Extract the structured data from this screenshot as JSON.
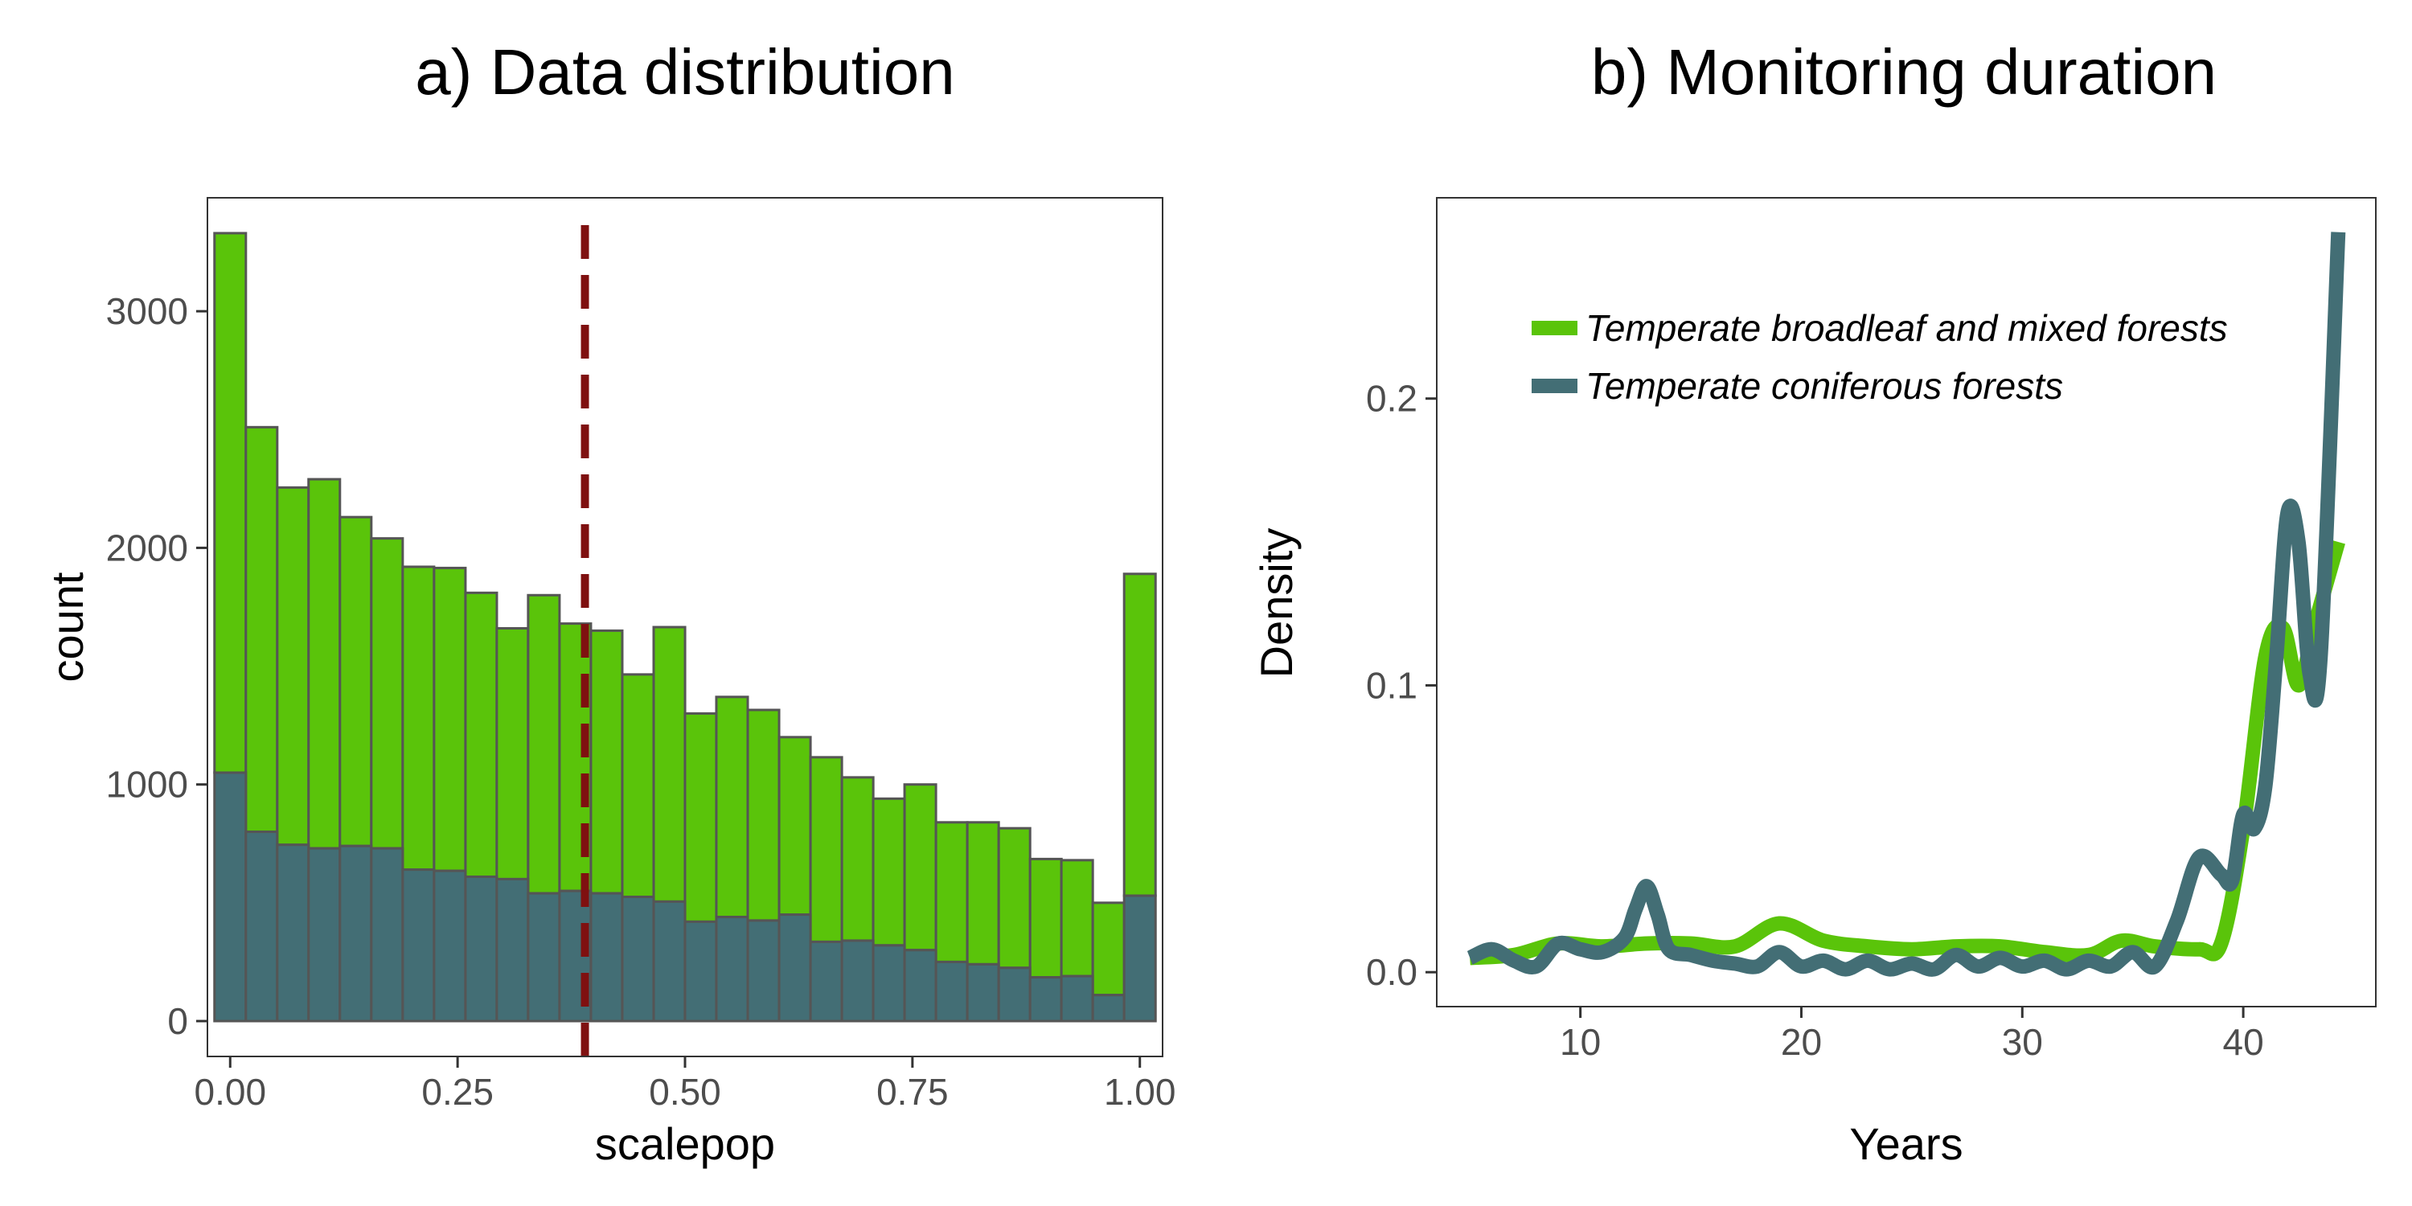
{
  "chart_data": [
    {
      "type": "bar",
      "title": "a) Data distribution",
      "xlabel": "scalepop",
      "ylabel": "count",
      "xlim": [
        -0.025,
        1.025
      ],
      "ylim": [
        0,
        3330
      ],
      "x_ticks": [
        "0.00",
        "0.25",
        "0.50",
        "0.75",
        "1.00"
      ],
      "x_tick_values": [
        0,
        0.25,
        0.5,
        0.75,
        1.0
      ],
      "y_ticks": [
        "0",
        "1000",
        "2000",
        "3000"
      ],
      "y_tick_values": [
        0,
        1000,
        2000,
        3000
      ],
      "grid": false,
      "bin_width": 0.0345,
      "bin_centers": [
        0.0,
        0.0345,
        0.069,
        0.1034,
        0.1379,
        0.1724,
        0.2069,
        0.2414,
        0.2759,
        0.3103,
        0.3448,
        0.3793,
        0.4138,
        0.4483,
        0.4828,
        0.5172,
        0.5517,
        0.5862,
        0.6207,
        0.6552,
        0.6897,
        0.7241,
        0.7586,
        0.7931,
        0.8276,
        0.8621,
        0.8966,
        0.931,
        0.9655,
        1.0
      ],
      "series": [
        {
          "color": "#5AC40A",
          "values": [
            2280,
            1710,
            1510,
            1560,
            1390,
            1310,
            1280,
            1280,
            1200,
            1060,
            1260,
            1130,
            1110,
            940,
            1160,
            880,
            930,
            890,
            750,
            780,
            690,
            620,
            700,
            590,
            600,
            590,
            500,
            490,
            390,
            1360
          ]
        },
        {
          "color": "#436E75",
          "values": [
            1050,
            800,
            745,
            730,
            740,
            730,
            640,
            635,
            610,
            600,
            540,
            550,
            540,
            525,
            505,
            420,
            440,
            425,
            450,
            335,
            340,
            320,
            300,
            250,
            240,
            225,
            185,
            190,
            110,
            530
          ]
        }
      ],
      "annotations": [
        {
          "type": "vline",
          "x": 0.39,
          "style": "dashed",
          "color": "#7F1010"
        }
      ]
    },
    {
      "type": "line",
      "title": "b) Monitoring duration",
      "xlabel": "Years",
      "ylabel": "Density",
      "xlim": [
        3.5,
        46
      ],
      "ylim": [
        -0.012,
        0.27
      ],
      "x_ticks": [
        "10",
        "20",
        "30",
        "40"
      ],
      "x_tick_values": [
        10,
        20,
        30,
        40
      ],
      "y_ticks": [
        "0.0",
        "0.1",
        "0.2"
      ],
      "y_tick_values": [
        0.0,
        0.1,
        0.2
      ],
      "grid": false,
      "legend": {
        "placement": "top-left"
      },
      "series": [
        {
          "name": "Temperate broadleaf and mixed forests",
          "color": "#5AC40A",
          "x": [
            5,
            7,
            9,
            11,
            13,
            15,
            17,
            19,
            21,
            23,
            25,
            27,
            29,
            31,
            33,
            34.5,
            36,
            38,
            39,
            40,
            41,
            41.8,
            42.5,
            43.2,
            44.3
          ],
          "y": [
            0.005,
            0.006,
            0.01,
            0.009,
            0.01,
            0.01,
            0.009,
            0.017,
            0.011,
            0.009,
            0.008,
            0.009,
            0.009,
            0.007,
            0.006,
            0.011,
            0.009,
            0.008,
            0.01,
            0.05,
            0.11,
            0.12,
            0.1,
            0.12,
            0.15
          ]
        },
        {
          "name": "Temperate coniferous forests",
          "color": "#436E75",
          "x": [
            5,
            6,
            7,
            8,
            9,
            10,
            11,
            12,
            12.5,
            13,
            13.5,
            14,
            15,
            16,
            17,
            18,
            19,
            20,
            21,
            22,
            23,
            24,
            25,
            26,
            27,
            28,
            29,
            30,
            31,
            32,
            33,
            34,
            35,
            36,
            37,
            38,
            39,
            39.5,
            40,
            40.5,
            41,
            41.5,
            42,
            42.5,
            43,
            43.5,
            44.3
          ],
          "y": [
            0.005,
            0.008,
            0.004,
            0.002,
            0.01,
            0.008,
            0.007,
            0.012,
            0.022,
            0.03,
            0.02,
            0.008,
            0.006,
            0.004,
            0.003,
            0.002,
            0.007,
            0.002,
            0.004,
            0.001,
            0.004,
            0.001,
            0.003,
            0.001,
            0.006,
            0.002,
            0.005,
            0.002,
            0.004,
            0.001,
            0.004,
            0.002,
            0.007,
            0.002,
            0.018,
            0.04,
            0.034,
            0.032,
            0.055,
            0.05,
            0.065,
            0.11,
            0.16,
            0.15,
            0.104,
            0.11,
            0.258
          ]
        }
      ]
    }
  ]
}
